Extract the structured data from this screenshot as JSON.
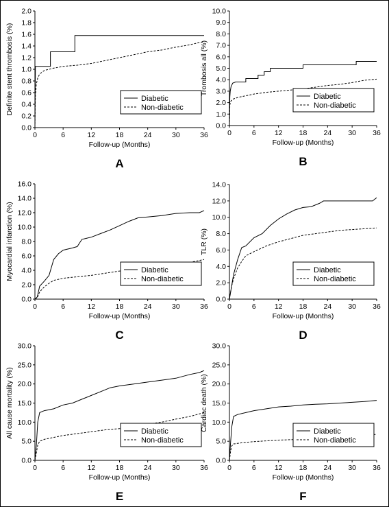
{
  "chart_data": [
    {
      "panel": "A",
      "type": "line",
      "ylabel": "Definite stent thrombosis (%)",
      "xlabel": "Follow-up (Months)",
      "xlim": [
        0,
        36
      ],
      "ylim": [
        0,
        2.0
      ],
      "ystep": 0.2,
      "ydecimals": 1,
      "xticks": [
        0,
        6,
        12,
        18,
        24,
        30,
        36
      ],
      "legend_position": "bottom-right",
      "grid": false,
      "series": [
        {
          "name": "Diabetic",
          "style": "solid",
          "points": [
            [
              0,
              0
            ],
            [
              0.05,
              0.5
            ],
            [
              0.1,
              1.05
            ],
            [
              3.3,
              1.05
            ],
            [
              3.3,
              1.3
            ],
            [
              8.5,
              1.3
            ],
            [
              8.5,
              1.58
            ],
            [
              36,
              1.58
            ]
          ]
        },
        {
          "name": "Non-diabetic",
          "style": "dashed",
          "points": [
            [
              0,
              0
            ],
            [
              0.05,
              0.3
            ],
            [
              0.1,
              0.55
            ],
            [
              0.3,
              0.75
            ],
            [
              0.6,
              0.85
            ],
            [
              1,
              0.92
            ],
            [
              2,
              0.98
            ],
            [
              3,
              1.0
            ],
            [
              4,
              1.02
            ],
            [
              6,
              1.05
            ],
            [
              9,
              1.07
            ],
            [
              12,
              1.1
            ],
            [
              15,
              1.15
            ],
            [
              18,
              1.2
            ],
            [
              21,
              1.25
            ],
            [
              24,
              1.3
            ],
            [
              27,
              1.33
            ],
            [
              30,
              1.38
            ],
            [
              33,
              1.42
            ],
            [
              35,
              1.46
            ],
            [
              36,
              1.47
            ]
          ]
        }
      ]
    },
    {
      "panel": "B",
      "type": "line",
      "ylabel": "Trombosis all (%)",
      "xlabel": "Follow-up (Months)",
      "xlim": [
        0,
        36
      ],
      "ylim": [
        0,
        10.0
      ],
      "ystep": 1.0,
      "ydecimals": 1,
      "xticks": [
        0,
        6,
        12,
        18,
        24,
        30,
        36
      ],
      "legend_position": "bottom-right",
      "grid": false,
      "series": [
        {
          "name": "Diabetic",
          "style": "solid",
          "points": [
            [
              0,
              0
            ],
            [
              0.1,
              2.5
            ],
            [
              0.2,
              3.0
            ],
            [
              0.4,
              3.4
            ],
            [
              0.8,
              3.7
            ],
            [
              1.5,
              3.8
            ],
            [
              4,
              3.8
            ],
            [
              4,
              4.1
            ],
            [
              7,
              4.1
            ],
            [
              7,
              4.4
            ],
            [
              8.5,
              4.4
            ],
            [
              8.5,
              4.7
            ],
            [
              10,
              4.7
            ],
            [
              10,
              5.0
            ],
            [
              18,
              5.0
            ],
            [
              18,
              5.3
            ],
            [
              31,
              5.3
            ],
            [
              31,
              5.6
            ],
            [
              36,
              5.6
            ]
          ]
        },
        {
          "name": "Non-diabetic",
          "style": "dashed",
          "points": [
            [
              0,
              0
            ],
            [
              0.1,
              1.8
            ],
            [
              0.3,
              2.1
            ],
            [
              0.8,
              2.3
            ],
            [
              2,
              2.45
            ],
            [
              4,
              2.6
            ],
            [
              6,
              2.75
            ],
            [
              9,
              2.9
            ],
            [
              12,
              3.0
            ],
            [
              15,
              3.1
            ],
            [
              18,
              3.2
            ],
            [
              21,
              3.35
            ],
            [
              24,
              3.5
            ],
            [
              27,
              3.6
            ],
            [
              30,
              3.75
            ],
            [
              33,
              3.95
            ],
            [
              36,
              4.05
            ]
          ]
        }
      ]
    },
    {
      "panel": "C",
      "type": "line",
      "ylabel": "Myocardial infarction (%)",
      "xlabel": "Follow-up (Months)",
      "xlim": [
        0,
        36
      ],
      "ylim": [
        0,
        16.0
      ],
      "ystep": 2.0,
      "ydecimals": 1,
      "xticks": [
        0,
        6,
        12,
        18,
        24,
        30,
        36
      ],
      "legend_position": "bottom-right",
      "grid": false,
      "series": [
        {
          "name": "Diabetic",
          "style": "solid",
          "points": [
            [
              0,
              0
            ],
            [
              0.5,
              0.3
            ],
            [
              1,
              1.8
            ],
            [
              2,
              2.5
            ],
            [
              3,
              3.3
            ],
            [
              4,
              5.5
            ],
            [
              5,
              6.3
            ],
            [
              6,
              6.8
            ],
            [
              8,
              7.1
            ],
            [
              9,
              7.3
            ],
            [
              10,
              8.3
            ],
            [
              12,
              8.6
            ],
            [
              14,
              9.1
            ],
            [
              16,
              9.6
            ],
            [
              18,
              10.2
            ],
            [
              20,
              10.8
            ],
            [
              22,
              11.3
            ],
            [
              24,
              11.4
            ],
            [
              27,
              11.6
            ],
            [
              30,
              11.9
            ],
            [
              33,
              12.0
            ],
            [
              35,
              12.0
            ],
            [
              36,
              12.3
            ]
          ]
        },
        {
          "name": "Non-diabetic",
          "style": "dashed",
          "points": [
            [
              0,
              0
            ],
            [
              0.5,
              0.2
            ],
            [
              1,
              1.0
            ],
            [
              2,
              1.7
            ],
            [
              3,
              2.2
            ],
            [
              4,
              2.6
            ],
            [
              6,
              2.9
            ],
            [
              9,
              3.1
            ],
            [
              12,
              3.3
            ],
            [
              15,
              3.6
            ],
            [
              18,
              3.9
            ],
            [
              21,
              4.1
            ],
            [
              24,
              4.3
            ],
            [
              27,
              4.6
            ],
            [
              30,
              4.8
            ],
            [
              33,
              5.1
            ],
            [
              36,
              5.5
            ]
          ]
        }
      ]
    },
    {
      "panel": "D",
      "type": "line",
      "ylabel": "TLR (%)",
      "xlabel": "Follow-up (Months)",
      "xlim": [
        0,
        36
      ],
      "ylim": [
        0,
        14.0
      ],
      "ystep": 2.0,
      "ydecimals": 1,
      "xticks": [
        0,
        6,
        12,
        18,
        24,
        30,
        36
      ],
      "legend_position": "bottom-right",
      "grid": false,
      "series": [
        {
          "name": "Diabetic",
          "style": "solid",
          "points": [
            [
              0,
              0
            ],
            [
              0.5,
              1.5
            ],
            [
              1,
              3.0
            ],
            [
              2,
              4.8
            ],
            [
              3,
              6.3
            ],
            [
              4,
              6.5
            ],
            [
              6,
              7.5
            ],
            [
              8,
              8.0
            ],
            [
              10,
              9.0
            ],
            [
              12,
              9.8
            ],
            [
              14,
              10.4
            ],
            [
              16,
              10.9
            ],
            [
              18,
              11.2
            ],
            [
              20,
              11.3
            ],
            [
              22,
              11.7
            ],
            [
              23,
              12.0
            ],
            [
              24,
              12.0
            ],
            [
              30,
              12.0
            ],
            [
              35,
              12.0
            ],
            [
              36,
              12.4
            ]
          ]
        },
        {
          "name": "Non-diabetic",
          "style": "dashed",
          "points": [
            [
              0,
              0
            ],
            [
              0.5,
              1.5
            ],
            [
              1,
              2.5
            ],
            [
              2,
              3.8
            ],
            [
              3,
              4.6
            ],
            [
              4,
              5.3
            ],
            [
              6,
              5.8
            ],
            [
              9,
              6.5
            ],
            [
              12,
              7.0
            ],
            [
              15,
              7.4
            ],
            [
              18,
              7.8
            ],
            [
              21,
              8.0
            ],
            [
              24,
              8.2
            ],
            [
              27,
              8.4
            ],
            [
              30,
              8.5
            ],
            [
              33,
              8.6
            ],
            [
              36,
              8.7
            ]
          ]
        }
      ]
    },
    {
      "panel": "E",
      "type": "line",
      "ylabel": "All cause mortality (%)",
      "xlabel": "Follow-up (Months)",
      "xlim": [
        0,
        36
      ],
      "ylim": [
        0,
        30.0
      ],
      "ystep": 5.0,
      "ydecimals": 1,
      "xticks": [
        0,
        6,
        12,
        18,
        24,
        30,
        36
      ],
      "legend_position": "bottom-right",
      "grid": false,
      "series": [
        {
          "name": "Diabetic",
          "style": "solid",
          "points": [
            [
              0,
              0
            ],
            [
              0.3,
              4
            ],
            [
              0.6,
              10
            ],
            [
              1,
              12.5
            ],
            [
              2,
              13
            ],
            [
              4,
              13.5
            ],
            [
              6,
              14.5
            ],
            [
              8,
              15
            ],
            [
              10,
              16
            ],
            [
              12,
              17
            ],
            [
              14,
              18
            ],
            [
              16,
              19
            ],
            [
              18,
              19.5
            ],
            [
              21,
              20
            ],
            [
              24,
              20.5
            ],
            [
              27,
              21
            ],
            [
              30,
              21.5
            ],
            [
              33,
              22.5
            ],
            [
              35,
              23
            ],
            [
              36,
              23.5
            ]
          ]
        },
        {
          "name": "Non-diabetic",
          "style": "dashed",
          "points": [
            [
              0,
              0
            ],
            [
              0.3,
              2
            ],
            [
              0.6,
              4
            ],
            [
              1,
              5
            ],
            [
              2,
              5.5
            ],
            [
              4,
              6
            ],
            [
              6,
              6.5
            ],
            [
              9,
              7
            ],
            [
              12,
              7.5
            ],
            [
              15,
              8
            ],
            [
              18,
              8.3
            ],
            [
              21,
              8.8
            ],
            [
              24,
              9.5
            ],
            [
              27,
              10
            ],
            [
              30,
              10.8
            ],
            [
              33,
              11.5
            ],
            [
              36,
              12.5
            ]
          ]
        }
      ]
    },
    {
      "panel": "F",
      "type": "line",
      "ylabel": "Cardiac death (%)",
      "xlabel": "Follow-up (Months)",
      "xlim": [
        0,
        36
      ],
      "ylim": [
        0,
        30.0
      ],
      "ystep": 5.0,
      "ydecimals": 1,
      "xticks": [
        0,
        6,
        12,
        18,
        24,
        30,
        36
      ],
      "legend_position": "bottom-right",
      "grid": false,
      "series": [
        {
          "name": "Diabetic",
          "style": "solid",
          "points": [
            [
              0,
              0
            ],
            [
              0.3,
              5
            ],
            [
              0.6,
              9
            ],
            [
              1,
              11.5
            ],
            [
              2,
              12
            ],
            [
              4,
              12.5
            ],
            [
              6,
              13
            ],
            [
              9,
              13.5
            ],
            [
              12,
              14
            ],
            [
              15,
              14.2
            ],
            [
              18,
              14.5
            ],
            [
              21,
              14.7
            ],
            [
              24,
              14.8
            ],
            [
              27,
              15
            ],
            [
              30,
              15.2
            ],
            [
              33,
              15.4
            ],
            [
              36,
              15.7
            ]
          ]
        },
        {
          "name": "Non-diabetic",
          "style": "dashed",
          "points": [
            [
              0,
              0
            ],
            [
              0.3,
              2.5
            ],
            [
              0.6,
              3.8
            ],
            [
              1,
              4.3
            ],
            [
              3,
              4.6
            ],
            [
              6,
              4.9
            ],
            [
              9,
              5.1
            ],
            [
              12,
              5.3
            ],
            [
              15,
              5.4
            ],
            [
              18,
              5.6
            ],
            [
              21,
              5.8
            ],
            [
              24,
              6.0
            ],
            [
              27,
              6.2
            ],
            [
              30,
              6.4
            ],
            [
              33,
              6.6
            ],
            [
              36,
              6.8
            ]
          ]
        }
      ]
    }
  ]
}
